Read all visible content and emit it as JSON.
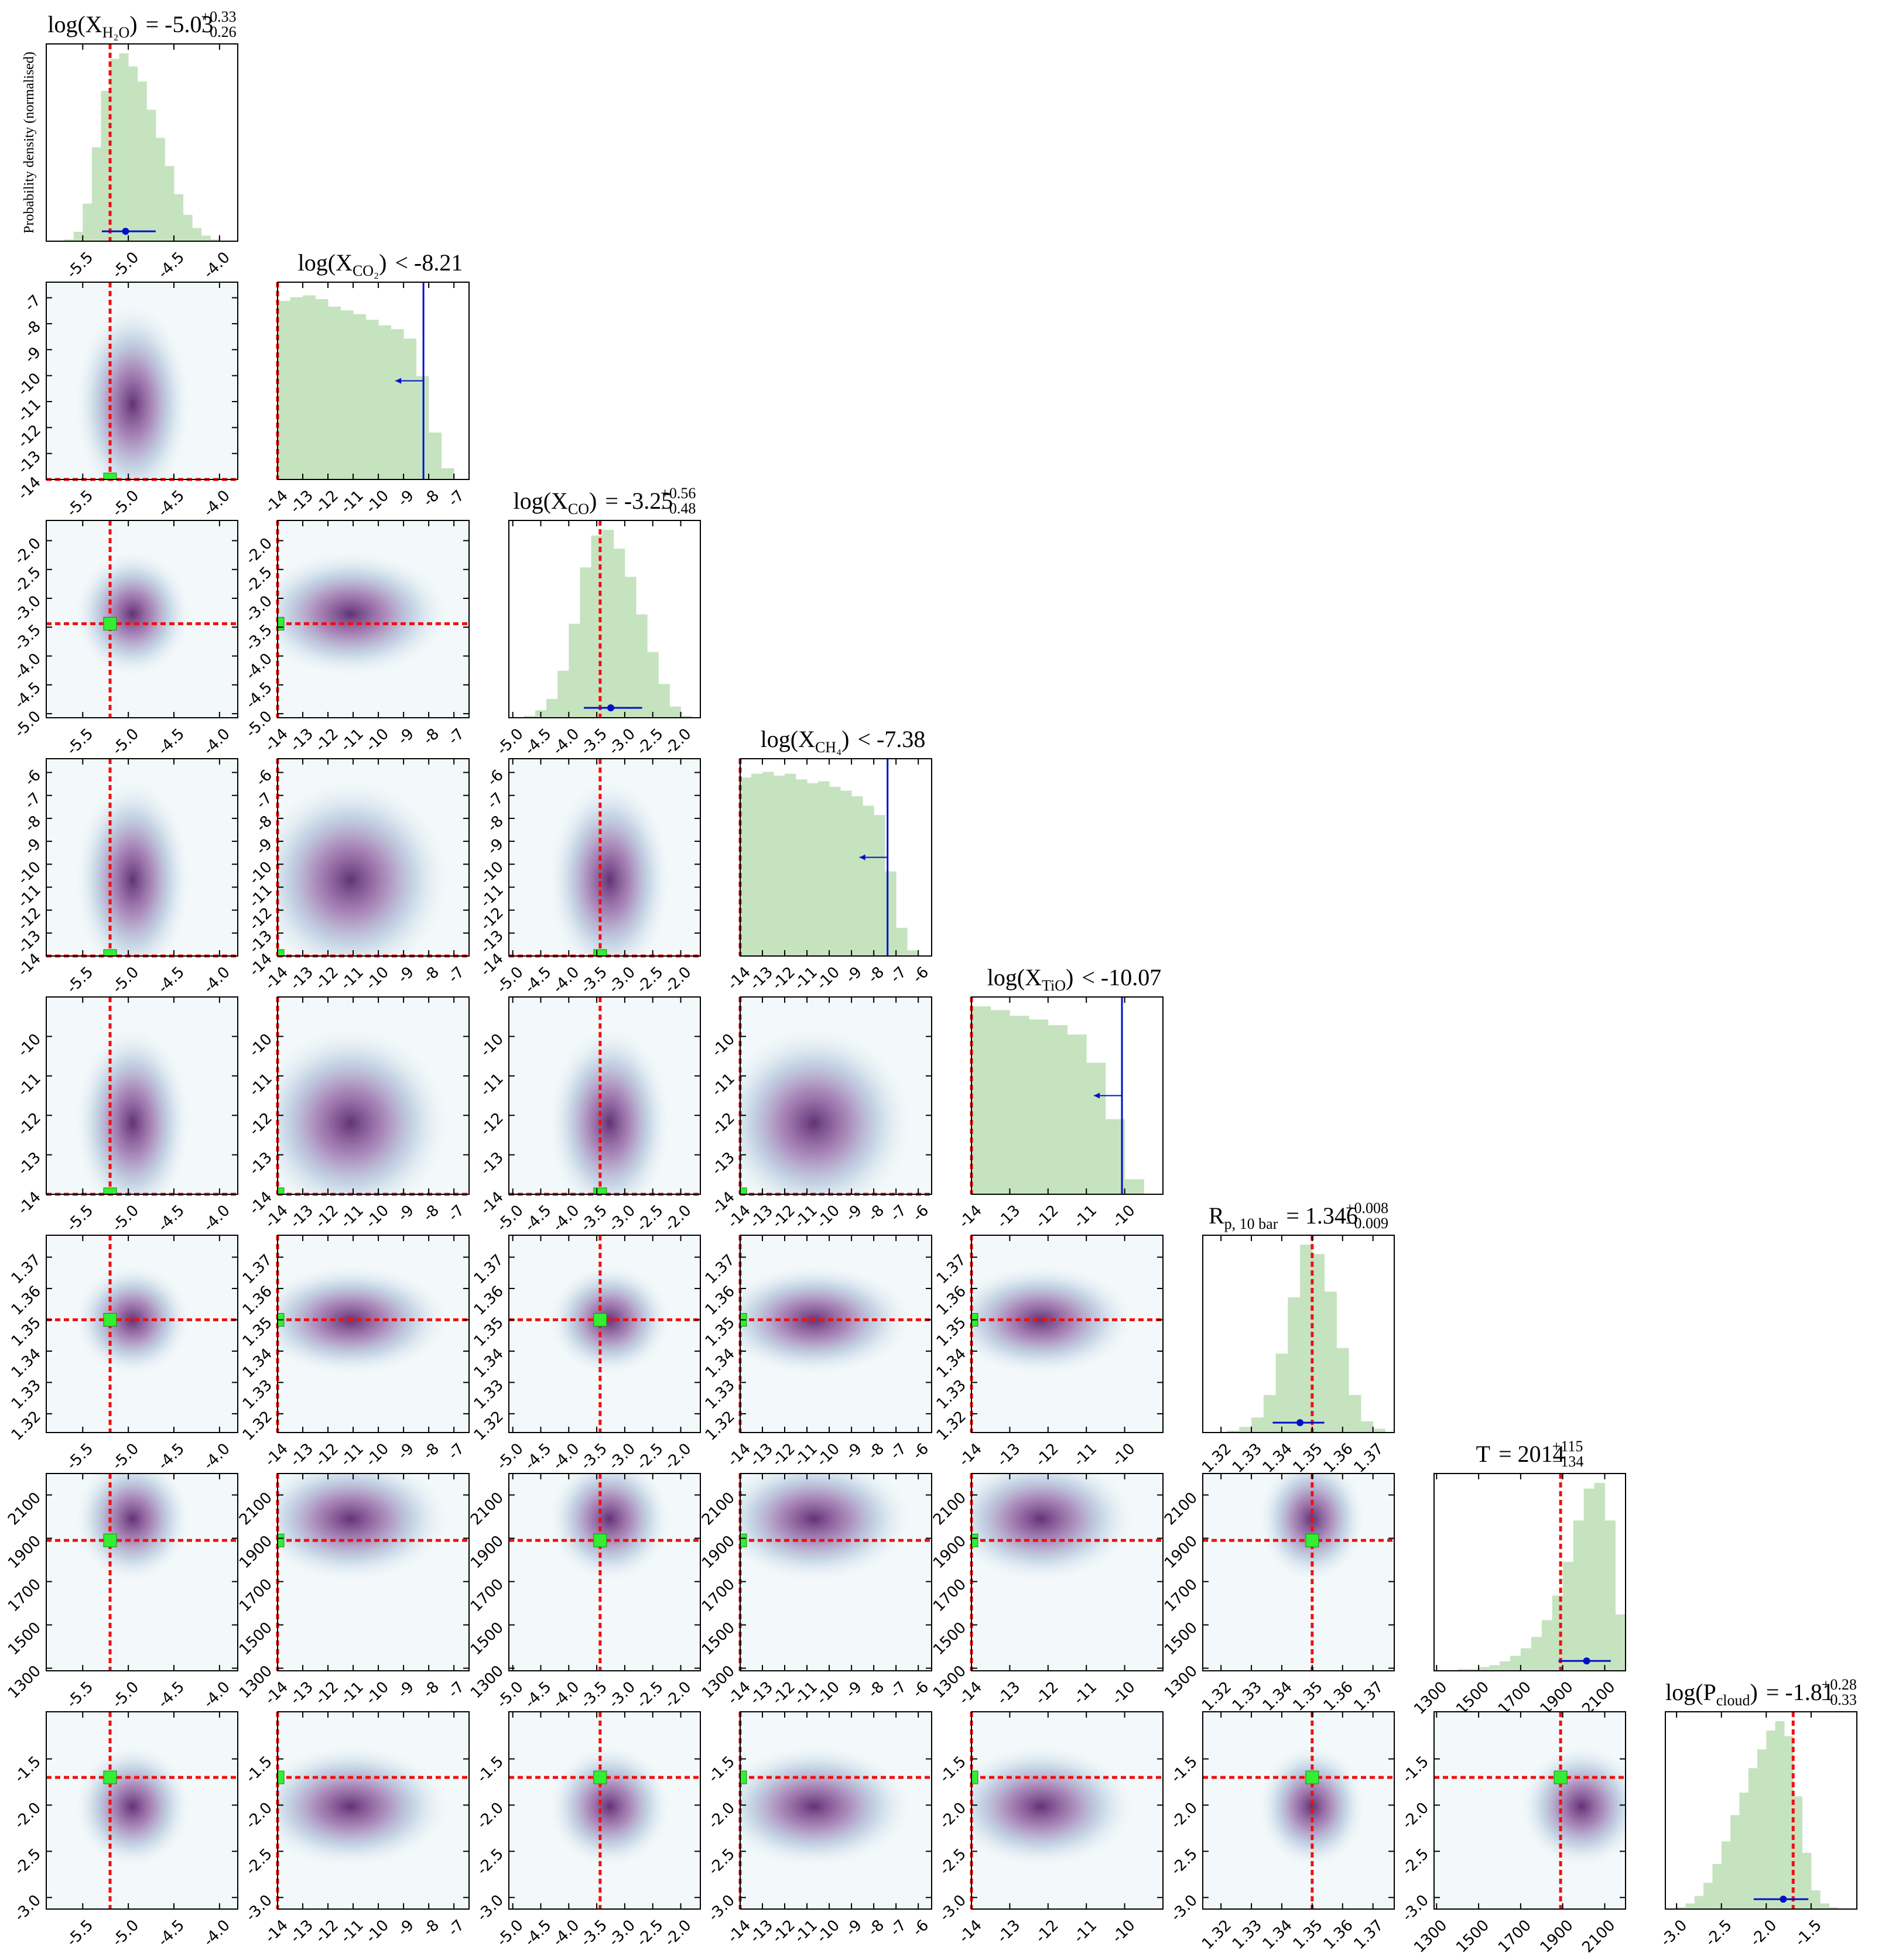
{
  "chart_data": {
    "type": "corner",
    "ylabel": "Probability density (normalised)",
    "hist_color": "#c6e3c0",
    "truth_color": "#ee1111",
    "truth_marker_color": "#33ee33",
    "estimate_color": "#0010c8",
    "hist_ylim": [
      0,
      1.05
    ],
    "params": [
      {
        "title": {
          "pre": "log(X",
          "sub": "H₂O",
          "post": ")",
          "rel": "="
        },
        "median": -5.03,
        "err_plus": {
          "value": 0.33,
          "label": "+0.33"
        },
        "err_minus": {
          "value": 0.26,
          "label": "−0.26"
        },
        "truth": -5.2,
        "lim": [
          -5.9,
          -3.8
        ],
        "ticks": [
          -5.5,
          {
            "value": -5,
            "label": "-5.0"
          },
          -4.5,
          {
            "value": -4,
            "label": "-4.0"
          }
        ],
        "hist": {
          "bins": [
            -5.7,
            -5.6,
            -5.5,
            -5.4,
            -5.3,
            -5.2,
            -5.1,
            -5.0,
            -4.9,
            -4.8,
            -4.7,
            -4.6,
            -4.5,
            -4.4,
            -4.3,
            -4.2,
            -4.1,
            -4.0
          ],
          "counts": [
            0.01,
            0.05,
            0.2,
            0.5,
            0.8,
            0.97,
            1.0,
            0.93,
            0.85,
            0.7,
            0.55,
            0.4,
            0.25,
            0.14,
            0.07,
            0.03,
            0.01
          ]
        }
      },
      {
        "title": {
          "pre": "log(X",
          "sub": "CO₂",
          "post": ")",
          "rel": "<"
        },
        "upper_limit": -8.21,
        "truth": -14,
        "lim": [
          -14,
          -6.4
        ],
        "ticks": [
          -14,
          -13,
          -12,
          -11,
          -10,
          -9,
          -8,
          -7
        ],
        "hist": {
          "bins": [
            -14,
            -13.5,
            -13,
            -12.5,
            -12,
            -11.5,
            -11,
            -10.5,
            -10,
            -9.5,
            -9,
            -8.5,
            -8,
            -7.5,
            -7
          ],
          "counts": [
            0.95,
            0.97,
            0.98,
            0.96,
            0.92,
            0.9,
            0.88,
            0.85,
            0.82,
            0.8,
            0.75,
            0.55,
            0.25,
            0.06
          ]
        }
      },
      {
        "title": {
          "pre": "log(X",
          "sub": "CO",
          "post": ")",
          "rel": "="
        },
        "median": -3.25,
        "err_plus": {
          "value": 0.56,
          "label": "+0.56"
        },
        "err_minus": {
          "value": 0.48,
          "label": "−0.48"
        },
        "truth": -3.44,
        "lim": [
          -5.07,
          -1.65
        ],
        "ticks": [
          {
            "value": -5,
            "label": "-5.0"
          },
          -4.5,
          {
            "value": -4,
            "label": "-4.0"
          },
          -3.5,
          {
            "value": -3,
            "label": "-3.0"
          },
          -2.5,
          {
            "value": -2,
            "label": "-2.0"
          }
        ],
        "hist": {
          "bins": [
            -4.8,
            -4.6,
            -4.4,
            -4.2,
            -4.0,
            -3.8,
            -3.6,
            -3.4,
            -3.2,
            -3.0,
            -2.8,
            -2.6,
            -2.4,
            -2.2,
            -2.0,
            -1.8
          ],
          "counts": [
            0.01,
            0.04,
            0.1,
            0.25,
            0.5,
            0.8,
            0.97,
            1.0,
            0.9,
            0.75,
            0.55,
            0.35,
            0.18,
            0.06,
            0.01
          ]
        }
      },
      {
        "title": {
          "pre": "log(X",
          "sub": "CH₄",
          "post": ")",
          "rel": "<"
        },
        "upper_limit": -7.38,
        "truth": -14,
        "lim": [
          -14,
          -5.4
        ],
        "ticks": [
          -14,
          -13,
          -12,
          -11,
          -10,
          -9,
          -8,
          -7,
          -6
        ],
        "hist": {
          "bins": [
            -14,
            -13.5,
            -13,
            -12.5,
            -12,
            -11.5,
            -11,
            -10.5,
            -10,
            -9.5,
            -9,
            -8.5,
            -8,
            -7.5,
            -7,
            -6.5,
            -6
          ],
          "counts": [
            0.95,
            0.97,
            0.98,
            0.96,
            0.97,
            0.94,
            0.92,
            0.93,
            0.9,
            0.88,
            0.85,
            0.8,
            0.75,
            0.45,
            0.15,
            0.03
          ]
        }
      },
      {
        "title": {
          "pre": "log(X",
          "sub": "TiO",
          "post": ")",
          "rel": "<"
        },
        "upper_limit": -10.07,
        "truth": -14,
        "lim": [
          -14,
          -9.0
        ],
        "ticks": [
          -14,
          -13,
          -12,
          -11,
          -10
        ],
        "hist": {
          "bins": [
            -14,
            -13.5,
            -13,
            -12.5,
            -12,
            -11.5,
            -11,
            -10.5,
            -10,
            -9.5
          ],
          "counts": [
            1.0,
            0.98,
            0.95,
            0.93,
            0.9,
            0.85,
            0.7,
            0.4,
            0.08
          ]
        }
      },
      {
        "title": {
          "pre": "R",
          "sub": "p, 10 bar",
          "rel": "="
        },
        "median": 1.346,
        "err_plus": {
          "value": 0.008,
          "label": "+0.008"
        },
        "err_minus": {
          "value": 0.009,
          "label": "−0.009"
        },
        "truth": 1.35,
        "lim": [
          1.314,
          1.377
        ],
        "ticks": [
          1.32,
          1.33,
          1.34,
          1.35,
          1.36,
          1.37
        ],
        "hist": {
          "bins": [
            1.322,
            1.326,
            1.33,
            1.334,
            1.338,
            1.342,
            1.346,
            1.35,
            1.354,
            1.358,
            1.362,
            1.366,
            1.37,
            1.374
          ],
          "counts": [
            0.01,
            0.03,
            0.08,
            0.2,
            0.42,
            0.72,
            1.0,
            0.95,
            0.75,
            0.45,
            0.2,
            0.06,
            0.02
          ]
        }
      },
      {
        "title": {
          "pre": "T",
          "rel": "="
        },
        "median": 2014,
        "err_plus": {
          "value": 115,
          "label": "+115"
        },
        "err_minus": {
          "value": 134,
          "label": "−134"
        },
        "truth": 1890,
        "lim": [
          1288,
          2199
        ],
        "ticks": [
          1300,
          1500,
          1700,
          1900,
          2100
        ],
        "hist": {
          "bins": [
            1400,
            1450,
            1500,
            1550,
            1600,
            1650,
            1700,
            1750,
            1800,
            1850,
            1900,
            1950,
            2000,
            2050,
            2100,
            2150,
            2200
          ],
          "counts": [
            0.01,
            0.01,
            0.02,
            0.03,
            0.05,
            0.08,
            0.12,
            0.18,
            0.27,
            0.4,
            0.58,
            0.8,
            0.97,
            1.0,
            0.8,
            0.3
          ]
        }
      },
      {
        "title": {
          "pre": "log(P",
          "sub": "cloud",
          "post": ")",
          "rel": "="
        },
        "median": -1.81,
        "err_plus": {
          "value": 0.28,
          "label": "+0.28"
        },
        "err_minus": {
          "value": 0.33,
          "label": "−0.33"
        },
        "truth": -1.7,
        "lim": [
          -3.125,
          -0.99
        ],
        "ticks": [
          {
            "value": -3,
            "label": "-3.0"
          },
          -2.5,
          {
            "value": -2,
            "label": "-2.0"
          },
          -1.5
        ],
        "hist": {
          "bins": [
            -3.0,
            -2.9,
            -2.8,
            -2.7,
            -2.6,
            -2.5,
            -2.4,
            -2.3,
            -2.2,
            -2.1,
            -2.0,
            -1.9,
            -1.8,
            -1.7,
            -1.6,
            -1.5,
            -1.4,
            -1.3,
            -1.2
          ],
          "counts": [
            0.01,
            0.03,
            0.07,
            0.14,
            0.24,
            0.36,
            0.5,
            0.62,
            0.75,
            0.85,
            0.95,
            1.0,
            0.92,
            0.6,
            0.3,
            0.1,
            0.03,
            0.01
          ]
        }
      }
    ]
  }
}
